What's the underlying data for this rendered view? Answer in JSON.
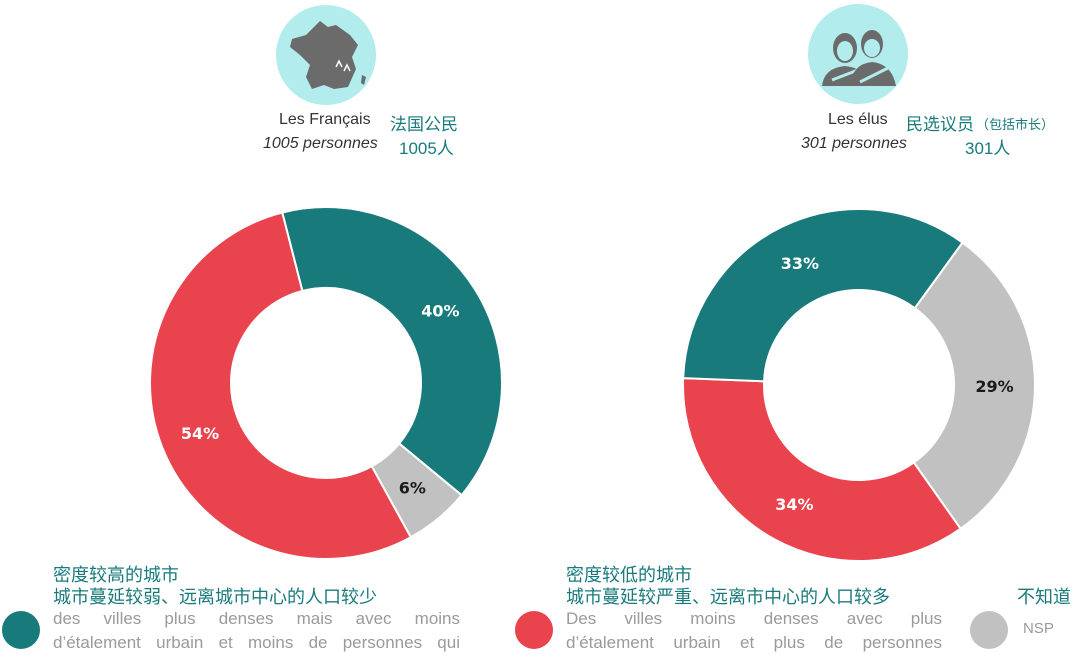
{
  "colors": {
    "teal": "#197a7c",
    "red": "#e9434e",
    "gray": "#c1c1c1",
    "avatar_bg": "#b3ecec"
  },
  "panels": {
    "left": {
      "icon": "france-map-icon",
      "title_fr": "Les Français",
      "title_cn": "法国公民",
      "count_fr": "1005 personnes",
      "count_cn": "1005人"
    },
    "right": {
      "icon": "elected-officials-icon",
      "title_fr": "Les élus",
      "title_cn": "民选议员",
      "title_cn_note": "（包括市长）",
      "count_fr": "301 personnes",
      "count_cn": "301人"
    }
  },
  "chart_data": [
    {
      "type": "pie",
      "donut": true,
      "slices": [
        {
          "key": "dense",
          "value": 40,
          "label": "40%"
        },
        {
          "key": "nsp",
          "value": 6,
          "label": "6%"
        },
        {
          "key": "less_dense",
          "value": 54,
          "label": "54%"
        }
      ]
    },
    {
      "type": "pie",
      "donut": true,
      "slices": [
        {
          "key": "nsp",
          "value": 29,
          "label": "29%"
        },
        {
          "key": "less_dense",
          "value": 34,
          "label": "34%"
        },
        {
          "key": "dense",
          "value": 33,
          "label": "33%"
        }
      ]
    }
  ],
  "legend": {
    "dense": {
      "cn1": "密度较高的城市",
      "cn2": "城市蔓延较弱、远离城市中心的人口较少",
      "fr1": "des villes plus denses mais avec moins",
      "fr2": "d’étalement urbain et moins de personnes qui"
    },
    "less_dense": {
      "cn1": "密度较低的城市",
      "cn2": "城市蔓延较严重、远离市中心的人口较多",
      "fr1": "Des villes moins denses avec plus",
      "fr2": "d’étalement urbain et plus de personnes"
    },
    "nsp": {
      "cn1": "不知道",
      "fr1": "NSP"
    }
  }
}
